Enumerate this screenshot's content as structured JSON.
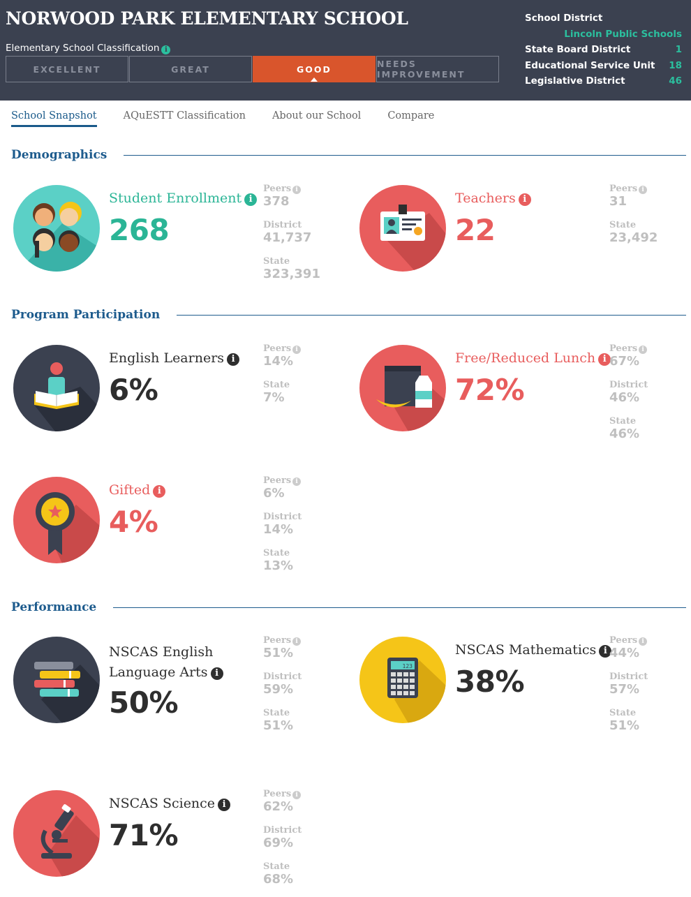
{
  "header": {
    "school_name": "NORWOOD PARK ELEMENTARY SCHOOL",
    "classification_label": "Elementary School Classification",
    "ratings": [
      "EXCELLENT",
      "GREAT",
      "GOOD",
      "NEEDS IMPROVEMENT"
    ],
    "active_rating": "GOOD",
    "district_info": [
      {
        "label": "School District",
        "value": ""
      },
      {
        "label": "",
        "value": "Lincoln Public Schools"
      },
      {
        "label": "State Board District",
        "value": "1"
      },
      {
        "label": "Educational Service Unit",
        "value": "18"
      },
      {
        "label": "Legislative District",
        "value": "46"
      }
    ]
  },
  "tabs": [
    "School Snapshot",
    "AQuESTT Classification",
    "About our School",
    "Compare"
  ],
  "active_tab": "School Snapshot",
  "sections": {
    "demographics": "Demographics",
    "program": "Program Participation",
    "performance": "Performance"
  },
  "info_glyph": "i",
  "stats": {
    "enrollment": {
      "title": "Student Enrollment",
      "value": "268",
      "icon": "students-icon",
      "comps": [
        {
          "label": "Peers",
          "value": "378"
        },
        {
          "label": "District",
          "value": "41,737"
        },
        {
          "label": "State",
          "value": "323,391"
        }
      ]
    },
    "teachers": {
      "title": "Teachers",
      "value": "22",
      "icon": "id-badge-icon",
      "comps": [
        {
          "label": "Peers",
          "value": "31"
        },
        {
          "label": "State",
          "value": "23,492"
        }
      ]
    },
    "ell": {
      "title": "English Learners",
      "value": "6%",
      "icon": "reader-book-icon",
      "comps": [
        {
          "label": "Peers",
          "value": "14%"
        },
        {
          "label": "State",
          "value": "7%"
        }
      ]
    },
    "frl": {
      "title": "Free/Reduced Lunch",
      "value": "72%",
      "icon": "lunch-bag-icon",
      "comps": [
        {
          "label": "Peers",
          "value": "67%"
        },
        {
          "label": "District",
          "value": "46%"
        },
        {
          "label": "State",
          "value": "46%"
        }
      ]
    },
    "gifted": {
      "title": "Gifted",
      "value": "4%",
      "icon": "award-ribbon-icon",
      "comps": [
        {
          "label": "Peers",
          "value": "6%"
        },
        {
          "label": "District",
          "value": "14%"
        },
        {
          "label": "State",
          "value": "13%"
        }
      ]
    },
    "ela": {
      "title_line1": "NSCAS English",
      "title_line2": "Language Arts",
      "value": "50%",
      "icon": "books-stack-icon",
      "comps": [
        {
          "label": "Peers",
          "value": "51%"
        },
        {
          "label": "District",
          "value": "59%"
        },
        {
          "label": "State",
          "value": "51%"
        }
      ]
    },
    "math": {
      "title": "NSCAS Mathematics",
      "value": "38%",
      "icon": "calculator-icon",
      "calc_display": "123",
      "comps": [
        {
          "label": "Peers",
          "value": "44%"
        },
        {
          "label": "District",
          "value": "57%"
        },
        {
          "label": "State",
          "value": "51%"
        }
      ]
    },
    "science": {
      "title": "NSCAS Science",
      "value": "71%",
      "icon": "microscope-icon",
      "comps": [
        {
          "label": "Peers",
          "value": "62%"
        },
        {
          "label": "District",
          "value": "69%"
        },
        {
          "label": "State",
          "value": "68%"
        }
      ]
    }
  },
  "colors": {
    "header_bg": "#3b4150",
    "accent_teal": "#2bb596",
    "accent_red": "#e85d5d",
    "active_rating": "#d9552c",
    "section_blue": "#1d5b8d",
    "math_yellow": "#f5c518"
  }
}
